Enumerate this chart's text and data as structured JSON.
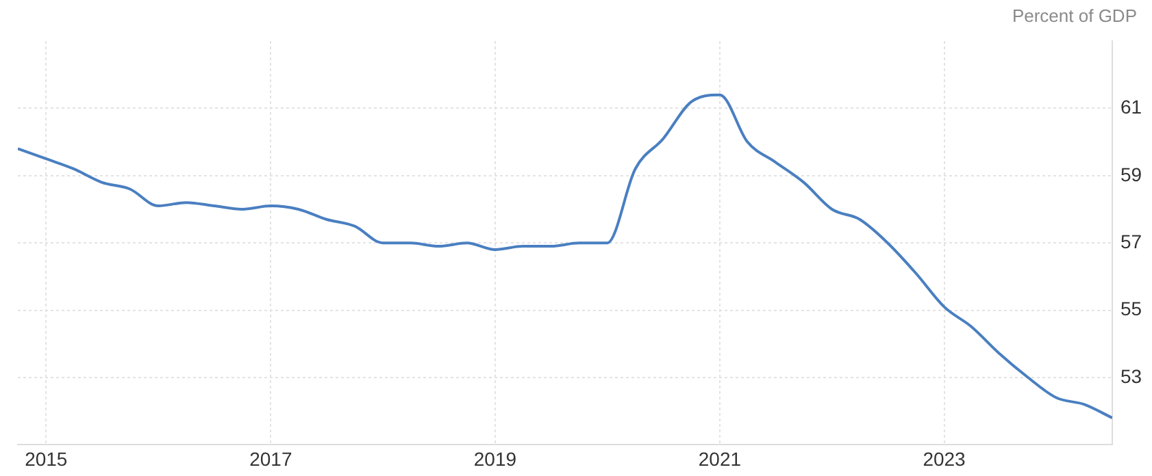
{
  "chart_data": {
    "type": "line",
    "ylabel": "Percent of GDP",
    "x": [
      "2014-10",
      "2015-01",
      "2015-04",
      "2015-07",
      "2015-10",
      "2016-01",
      "2016-04",
      "2016-07",
      "2016-10",
      "2017-01",
      "2017-04",
      "2017-07",
      "2017-10",
      "2018-01",
      "2018-04",
      "2018-07",
      "2018-10",
      "2019-01",
      "2019-04",
      "2019-07",
      "2019-10",
      "2020-01",
      "2020-04",
      "2020-07",
      "2020-10",
      "2021-01",
      "2021-04",
      "2021-07",
      "2021-10",
      "2022-01",
      "2022-04",
      "2022-07",
      "2022-10",
      "2023-01",
      "2023-04",
      "2023-07",
      "2023-10",
      "2024-01",
      "2024-04",
      "2024-07"
    ],
    "series": [
      {
        "color": "#4a7fc1",
        "values": [
          59.8,
          59.5,
          59.2,
          58.8,
          58.6,
          58.1,
          58.2,
          58.1,
          58.0,
          58.1,
          58.0,
          57.7,
          57.5,
          57.0,
          57.0,
          56.9,
          57.0,
          56.8,
          56.9,
          56.9,
          57.0,
          57.0,
          59.2,
          60.1,
          61.2,
          61.4,
          60.0,
          59.4,
          58.8,
          58.0,
          57.7,
          57.0,
          56.1,
          55.1,
          54.5,
          53.7,
          53.0,
          52.4,
          52.2,
          51.8
        ]
      }
    ],
    "xlim": [
      "2014-10",
      "2024-07"
    ],
    "xticks": [
      "2015",
      "2017",
      "2019",
      "2021",
      "2023"
    ],
    "ylim": [
      51,
      63
    ],
    "yticks": [
      53,
      55,
      57,
      59,
      61
    ],
    "grid": true,
    "legend": false,
    "marker": "none",
    "line_style": "solid"
  }
}
